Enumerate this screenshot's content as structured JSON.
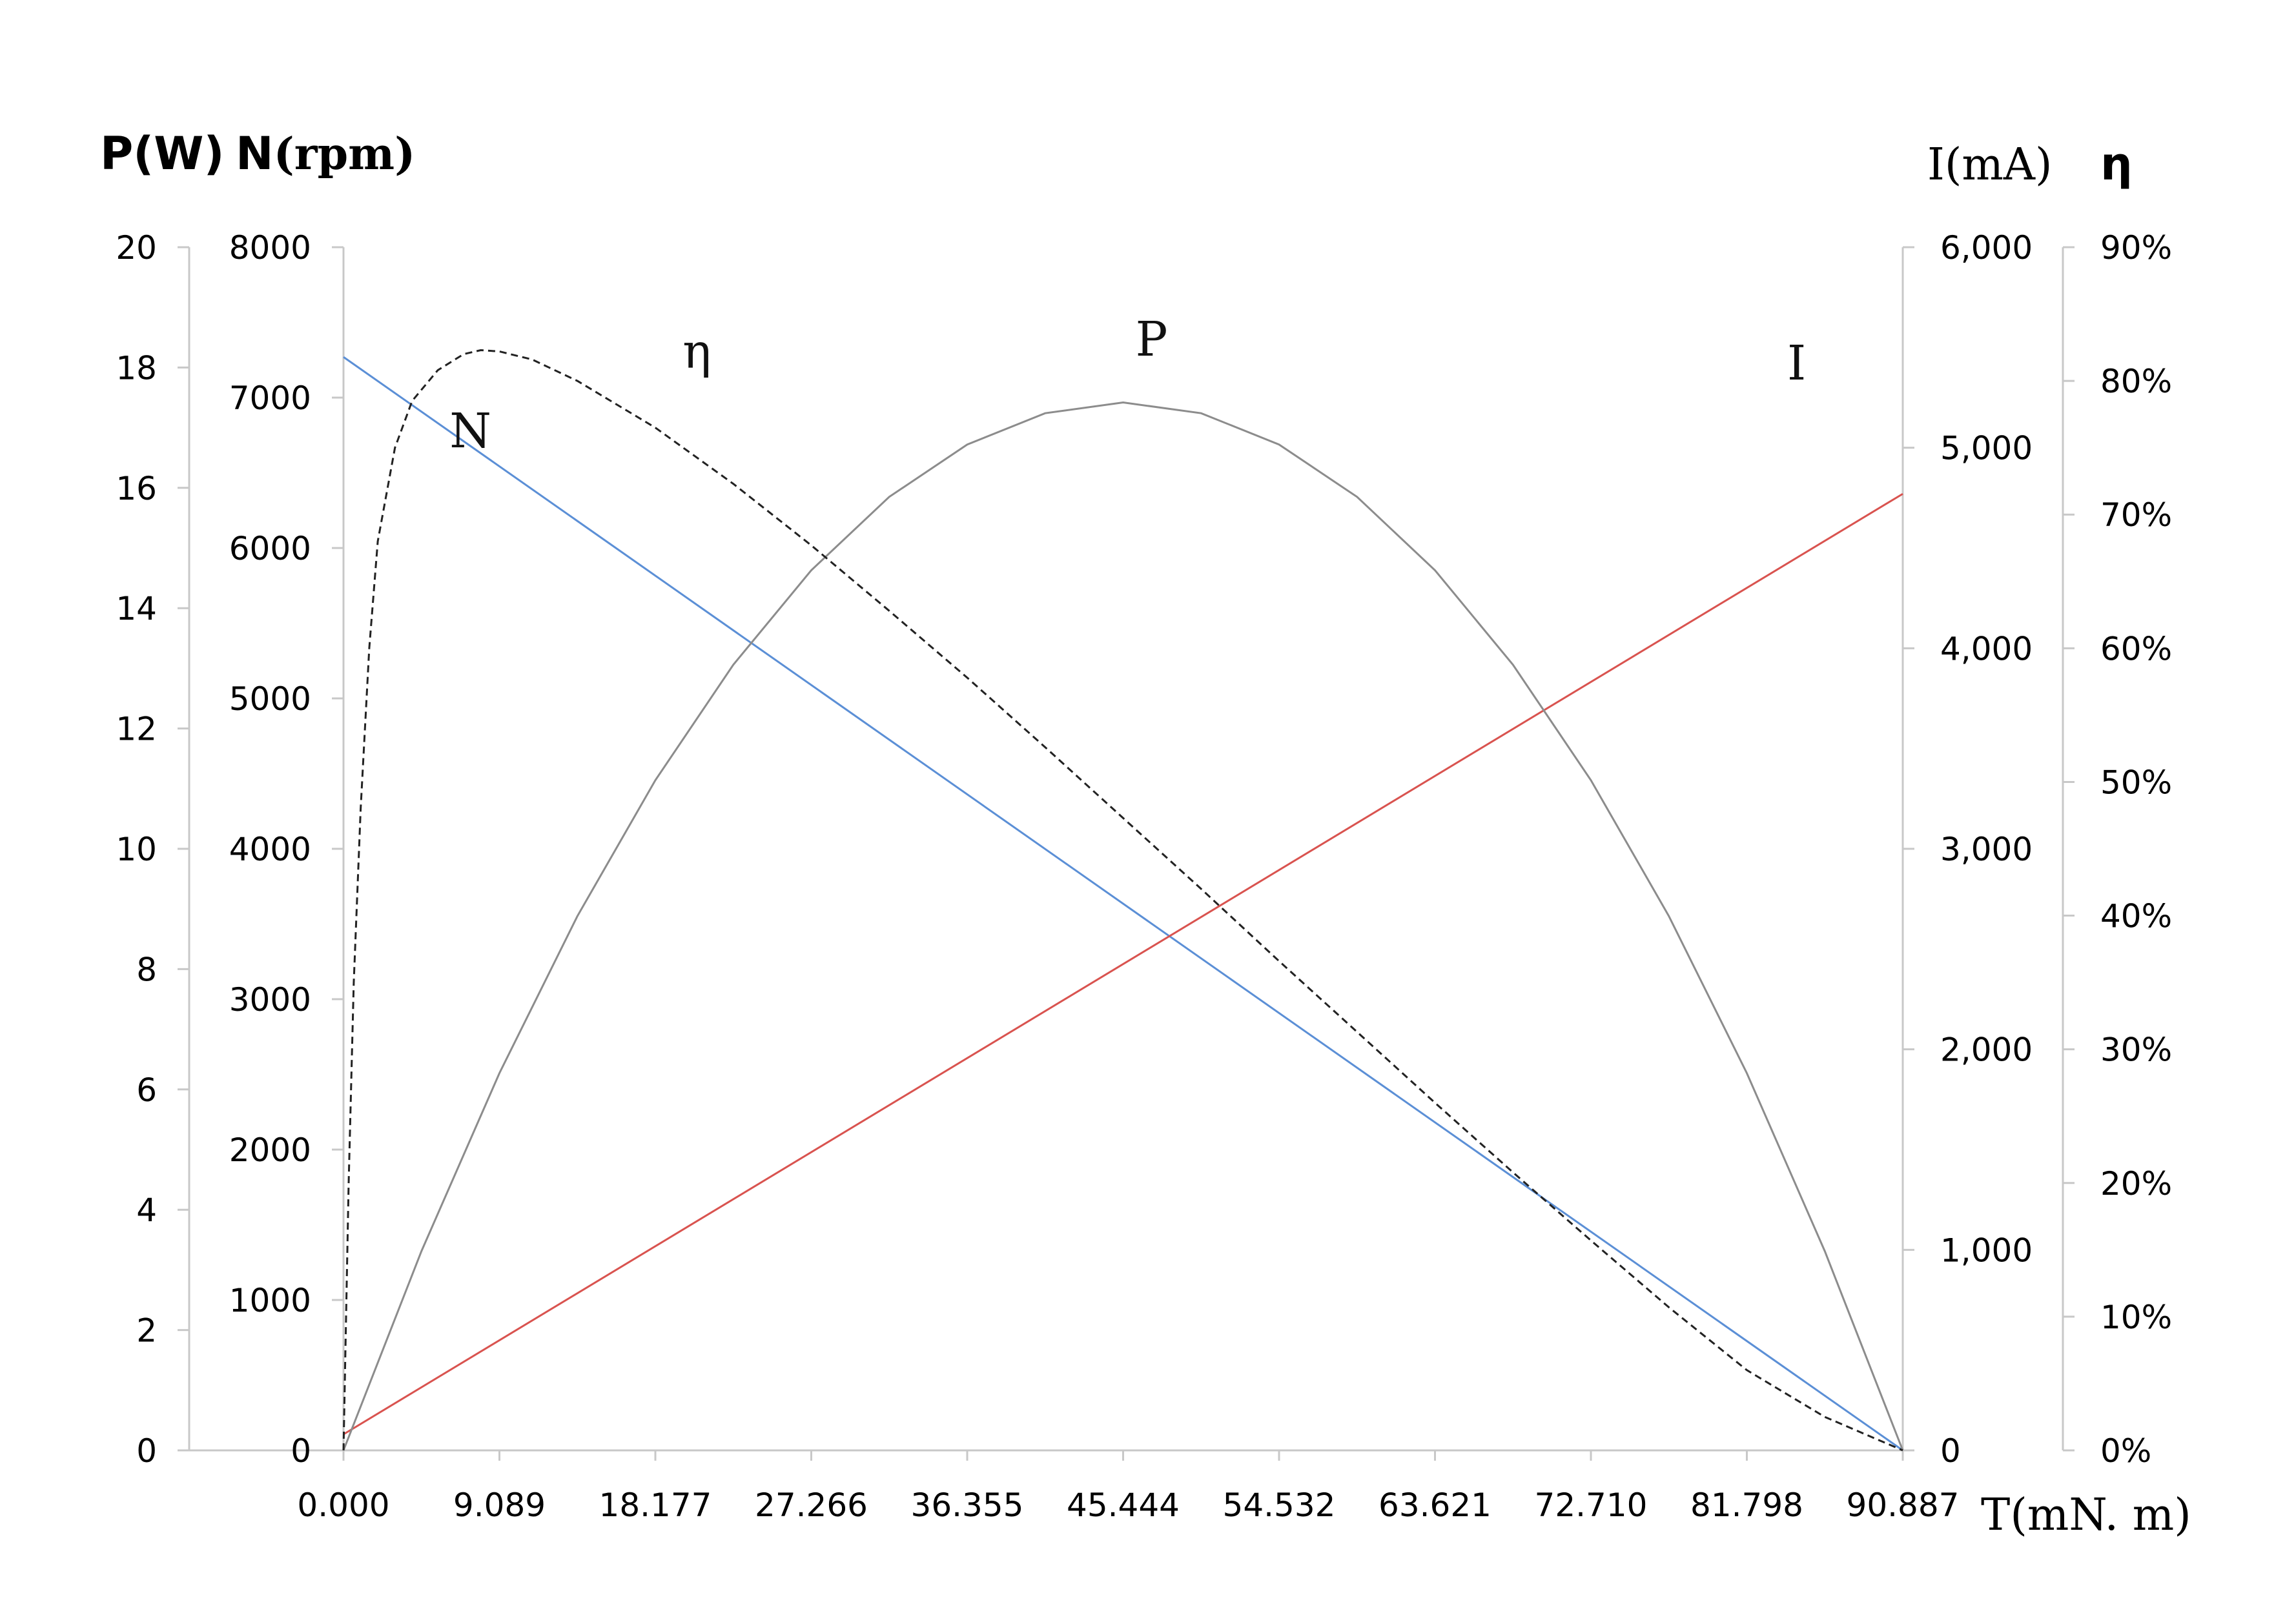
{
  "chart_data": {
    "type": "line",
    "x_axis": {
      "label_prefix": "T",
      "label_units": "(mN. m)",
      "ticks": [
        "0.000",
        "9.089",
        "18.177",
        "27.266",
        "36.355",
        "45.444",
        "54.532",
        "63.621",
        "72.710",
        "81.798",
        "90.887"
      ],
      "range": [
        0,
        90.887
      ]
    },
    "axes": {
      "power": {
        "label": "P(W)",
        "range": [
          0,
          20
        ],
        "ticks": [
          "0",
          "2",
          "4",
          "6",
          "8",
          "10",
          "12",
          "14",
          "16",
          "18",
          "20"
        ]
      },
      "speed": {
        "label_prefix": "N",
        "label_units": "(rpm)",
        "range": [
          0,
          8000
        ],
        "ticks": [
          "0",
          "1000",
          "2000",
          "3000",
          "4000",
          "5000",
          "6000",
          "7000",
          "8000"
        ]
      },
      "current": {
        "label_prefix": "I",
        "label_units": "(mA)",
        "range": [
          0,
          6000
        ],
        "ticks": [
          "0",
          "1,000",
          "2,000",
          "3,000",
          "4,000",
          "5,000",
          "6,000"
        ]
      },
      "efficiency": {
        "label": "η",
        "range": [
          0,
          90
        ],
        "ticks": [
          "0%",
          "10%",
          "20%",
          "30%",
          "40%",
          "50%",
          "60%",
          "70%",
          "80%",
          "90%"
        ]
      }
    },
    "series": [
      {
        "name": "N",
        "axis": "speed",
        "color": "#5b8fd6",
        "style": "solid",
        "points": [
          [
            0,
            7270
          ],
          [
            90.887,
            0
          ]
        ]
      },
      {
        "name": "I",
        "axis": "current",
        "color": "#d9534f",
        "style": "solid",
        "points": [
          [
            0,
            80
          ],
          [
            90.887,
            4770
          ]
        ]
      },
      {
        "name": "P",
        "axis": "power",
        "color": "#8c8c8c",
        "style": "solid",
        "points": [
          [
            0,
            0
          ],
          [
            4.544,
            3.31
          ],
          [
            9.089,
            6.27
          ],
          [
            13.633,
            8.88
          ],
          [
            18.177,
            11.14
          ],
          [
            22.722,
            13.06
          ],
          [
            27.266,
            14.63
          ],
          [
            31.81,
            15.85
          ],
          [
            36.355,
            16.72
          ],
          [
            40.899,
            17.24
          ],
          [
            45.444,
            17.42
          ],
          [
            49.988,
            17.24
          ],
          [
            54.532,
            16.72
          ],
          [
            59.077,
            15.85
          ],
          [
            63.621,
            14.63
          ],
          [
            68.165,
            13.06
          ],
          [
            72.71,
            11.14
          ],
          [
            77.254,
            8.88
          ],
          [
            81.798,
            6.27
          ],
          [
            86.343,
            3.31
          ],
          [
            90.887,
            0
          ]
        ]
      },
      {
        "name": "η",
        "axis": "efficiency",
        "color": "#222222",
        "style": "dashed",
        "points": [
          [
            0,
            0
          ],
          [
            0.3,
            20
          ],
          [
            0.6,
            35
          ],
          [
            1.0,
            48
          ],
          [
            1.5,
            60
          ],
          [
            2.0,
            68
          ],
          [
            3.0,
            75
          ],
          [
            4.0,
            78.5
          ],
          [
            5.5,
            80.8
          ],
          [
            7.0,
            82
          ],
          [
            8.0,
            82.3
          ],
          [
            9.089,
            82.2
          ],
          [
            11.0,
            81.6
          ],
          [
            13.633,
            80
          ],
          [
            18.177,
            76.5
          ],
          [
            22.722,
            72.3
          ],
          [
            27.266,
            67.7
          ],
          [
            31.81,
            62.8
          ],
          [
            36.355,
            57.8
          ],
          [
            40.899,
            52.6
          ],
          [
            45.444,
            47.3
          ],
          [
            49.988,
            42
          ],
          [
            54.532,
            36.6
          ],
          [
            59.077,
            31.3
          ],
          [
            63.621,
            26
          ],
          [
            68.165,
            20.8
          ],
          [
            72.71,
            15.7
          ],
          [
            77.254,
            10.7
          ],
          [
            81.798,
            6
          ],
          [
            86.343,
            2.5
          ],
          [
            90.887,
            0
          ]
        ]
      }
    ],
    "curve_labels": [
      {
        "text": "η",
        "x": 20.6,
        "y": 81.0,
        "axis": "efficiency"
      },
      {
        "text": "P",
        "x": 47.1,
        "y": 18.2,
        "axis": "power"
      },
      {
        "text": "I",
        "x": 84.7,
        "y": 5340,
        "axis": "current"
      },
      {
        "text": "N",
        "x": 7.4,
        "y": 6670,
        "axis": "speed"
      }
    ]
  }
}
